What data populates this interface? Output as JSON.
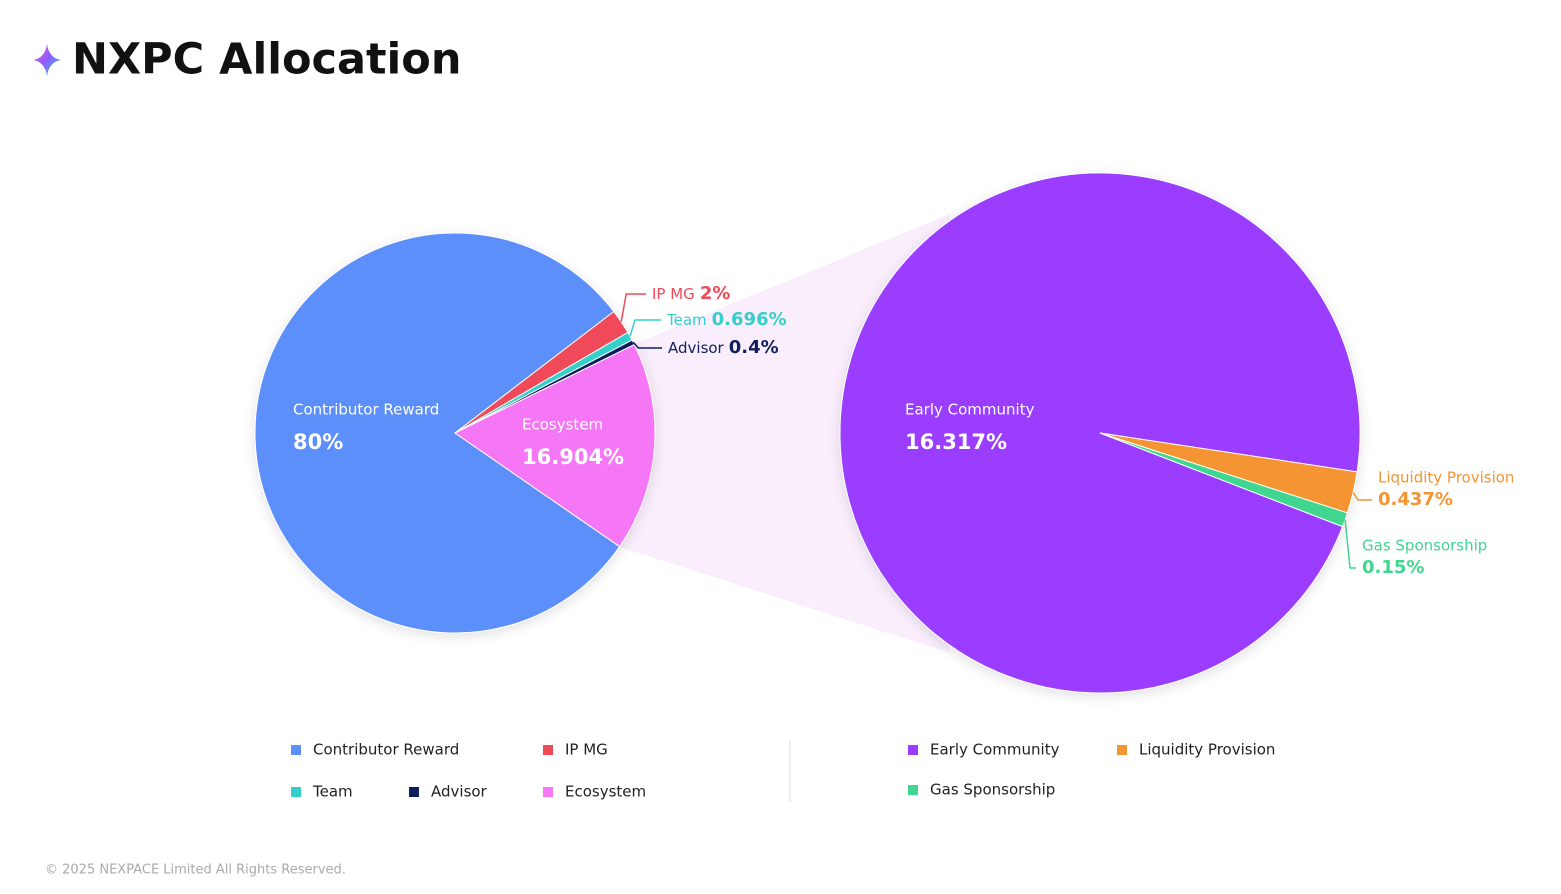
{
  "header": {
    "title": "NXPC Allocation"
  },
  "chart_data": [
    {
      "type": "pie",
      "categories": [
        "Contributor Reward",
        "IP MG",
        "Team",
        "Advisor",
        "Ecosystem"
      ],
      "values": [
        80,
        2,
        0.696,
        0.4,
        16.904
      ],
      "value_labels": [
        "80%",
        "2%",
        "0.696%",
        "0.4%",
        "16.904%"
      ],
      "colors": [
        "#5b8ff9",
        "#ef4a5a",
        "#35cfcb",
        "#0f1f5c",
        "#f577f5"
      ]
    },
    {
      "type": "pie",
      "categories": [
        "Early Community",
        "Liquidity Provision",
        "Gas Sponsorship"
      ],
      "values": [
        16.317,
        0.437,
        0.15
      ],
      "value_labels": [
        "16.317%",
        "0.437%",
        "0.15%"
      ],
      "colors": [
        "#9b3cff",
        "#f59432",
        "#3fd68f"
      ]
    }
  ],
  "footer": {
    "text": "© 2025 NEXPACE Limited All Rights Reserved."
  }
}
